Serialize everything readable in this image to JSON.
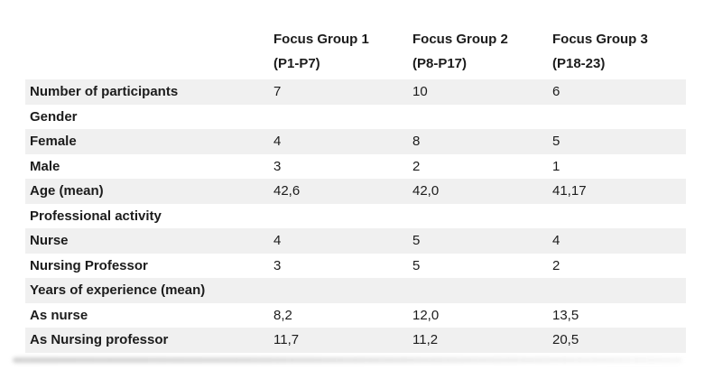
{
  "table": {
    "title_semantic": "Focus group participant characteristics",
    "header": {
      "columns": [
        {
          "line1": "Focus Group 1",
          "line2": "(P1-P7)"
        },
        {
          "line1": "Focus Group 2",
          "line2": "(P8-P17)"
        },
        {
          "line1": "Focus Group 3",
          "line2": "(P18-23)"
        }
      ]
    },
    "rows": [
      {
        "label": "Number of participants",
        "values": [
          "7",
          "10",
          "6"
        ]
      },
      {
        "label": "Gender",
        "values": [
          "",
          "",
          ""
        ]
      },
      {
        "label": "Female",
        "values": [
          "4",
          "8",
          "5"
        ]
      },
      {
        "label": "Male",
        "values": [
          "3",
          "2",
          "1"
        ]
      },
      {
        "label": "Age (mean)",
        "values": [
          "42,6",
          "42,0",
          "41,17"
        ]
      },
      {
        "label": "Professional activity",
        "values": [
          "",
          "",
          ""
        ]
      },
      {
        "label": "Nurse",
        "values": [
          "4",
          "5",
          "4"
        ]
      },
      {
        "label": "Nursing Professor",
        "values": [
          "3",
          "5",
          "2"
        ]
      },
      {
        "label": "Years of experience (mean)",
        "values": [
          "",
          "",
          ""
        ]
      },
      {
        "label": "As nurse",
        "values": [
          "8,2",
          "12,0",
          "13,5"
        ]
      },
      {
        "label": "As Nursing professor",
        "values": [
          "11,7",
          "11,2",
          "20,5"
        ]
      }
    ],
    "colors": {
      "stripe": "#f0f0f0",
      "background": "#ffffff",
      "text": "#1c1c1c"
    }
  },
  "chart_data": {
    "type": "table",
    "columns": [
      "",
      "Focus Group 1 (P1-P7)",
      "Focus Group 2 (P8-P17)",
      "Focus Group 3 (P18-23)"
    ],
    "rows": [
      [
        "Number of participants",
        "7",
        "10",
        "6"
      ],
      [
        "Gender",
        "",
        "",
        ""
      ],
      [
        "Female",
        "4",
        "8",
        "5"
      ],
      [
        "Male",
        "3",
        "2",
        "1"
      ],
      [
        "Age (mean)",
        "42,6",
        "42,0",
        "41,17"
      ],
      [
        "Professional activity",
        "",
        "",
        ""
      ],
      [
        "Nurse",
        "4",
        "5",
        "4"
      ],
      [
        "Nursing Professor",
        "3",
        "5",
        "2"
      ],
      [
        "Years of experience (mean)",
        "",
        "",
        ""
      ],
      [
        "As nurse",
        "8,2",
        "12,0",
        "13,5"
      ],
      [
        "As Nursing professor",
        "11,7",
        "11,2",
        "20,5"
      ]
    ]
  }
}
